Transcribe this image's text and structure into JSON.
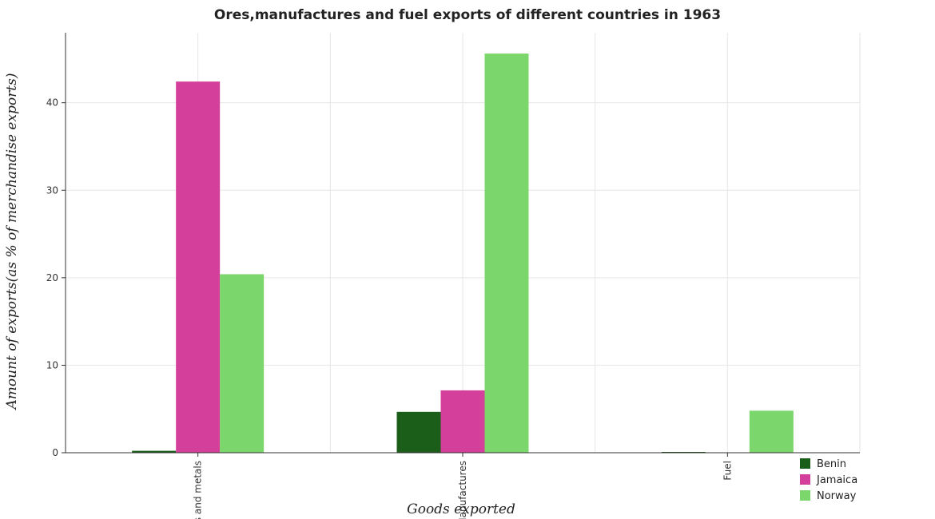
{
  "chart_data": {
    "type": "bar",
    "title": "Ores,manufactures and fuel exports of different countries in 1963",
    "xlabel": "Goods exported",
    "ylabel": "Amount of exports(as % of merchandise exports)",
    "categories": [
      "Ores and metals",
      "Manufactures",
      "Fuel"
    ],
    "series": [
      {
        "name": "Benin",
        "color": "#1a5e1a",
        "values": [
          0.22,
          4.67,
          0.09
        ]
      },
      {
        "name": "Jamaica",
        "color": "#d43f9b",
        "values": [
          42.42,
          7.13,
          0.0
        ]
      },
      {
        "name": "Norway",
        "color": "#7bd66b",
        "values": [
          20.4,
          45.62,
          4.8
        ]
      }
    ],
    "ylim": [
      0,
      48
    ],
    "yticks": [
      0,
      10,
      20,
      30,
      40
    ],
    "grid": true,
    "legend_position": "bottom-right"
  }
}
